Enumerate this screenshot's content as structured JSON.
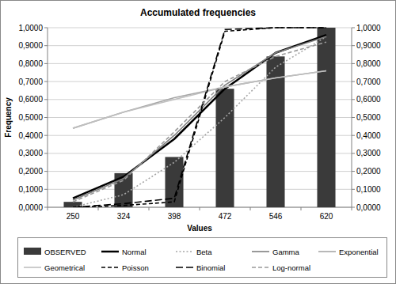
{
  "chart_data": {
    "type": "bar",
    "title": "Accumulated frequencies",
    "x_label": "Values",
    "y_label": "Frequency",
    "categories": [
      "250",
      "324",
      "398",
      "472",
      "546",
      "620"
    ],
    "ylim": [
      0,
      1
    ],
    "yticks": [
      {
        "value": 0,
        "label": "0,0000"
      },
      {
        "value": 0.1,
        "label": "0,1000"
      },
      {
        "value": 0.2,
        "label": "0,2000"
      },
      {
        "value": 0.3,
        "label": "0,3000"
      },
      {
        "value": 0.4,
        "label": "0,4000"
      },
      {
        "value": 0.5,
        "label": "0,5000"
      },
      {
        "value": 0.6,
        "label": "0,6000"
      },
      {
        "value": 0.7,
        "label": "0,7000"
      },
      {
        "value": 0.8,
        "label": "0,8000"
      },
      {
        "value": 0.9,
        "label": "0,9000"
      },
      {
        "value": 1,
        "label": "1,0000"
      }
    ],
    "y2lim": [
      0,
      1
    ],
    "y2ticks": [
      {
        "value": 0,
        "label": "0,0000"
      },
      {
        "value": 0.1,
        "label": "0,1000"
      },
      {
        "value": 0.2,
        "label": "0,2000"
      },
      {
        "value": 0.3,
        "label": "0,3000"
      },
      {
        "value": 0.4,
        "label": "0,4000"
      },
      {
        "value": 0.5,
        "label": "0,5000"
      },
      {
        "value": 0.6,
        "label": "0,6000"
      },
      {
        "value": 0.7,
        "label": "0,7000"
      },
      {
        "value": 0.8,
        "label": "0,8000"
      },
      {
        "value": 0.9,
        "label": "0,9000"
      },
      {
        "value": 1,
        "label": "1,0000"
      }
    ],
    "grid": true,
    "legend": "bottom",
    "series": [
      {
        "name": "OBSERVED",
        "type": "bar",
        "color": "#3a3a3a",
        "values": [
          0.03,
          0.19,
          0.28,
          0.66,
          0.84,
          1.0
        ]
      },
      {
        "name": "Normal",
        "type": "line",
        "color": "#000000",
        "line_style": "solid",
        "values": [
          0.05,
          0.17,
          0.38,
          0.66,
          0.86,
          0.96
        ]
      },
      {
        "name": "Beta",
        "type": "line",
        "color": "#a6a6a6",
        "line_style": "dotted",
        "values": [
          0.0,
          0.07,
          0.25,
          0.5,
          0.78,
          0.95
        ]
      },
      {
        "name": "Gamma",
        "type": "line",
        "color": "#7f7f7f",
        "line_style": "solid",
        "values": [
          0.04,
          0.16,
          0.4,
          0.68,
          0.86,
          0.95
        ]
      },
      {
        "name": "Exponential",
        "type": "line",
        "color": "#a6a6a6",
        "line_style": "solid",
        "values": [
          0.44,
          0.53,
          0.61,
          0.67,
          0.72,
          0.76
        ]
      },
      {
        "name": "Geometrical",
        "type": "line",
        "color": "#bfbfbf",
        "line_style": "solid",
        "values": [
          0.44,
          0.53,
          0.6,
          0.67,
          0.72,
          0.76
        ]
      },
      {
        "name": "Poisson",
        "type": "line",
        "color": "#000000",
        "line_style": "dashed",
        "values": [
          0.0,
          0.01,
          0.03,
          0.98,
          1.0,
          1.0
        ]
      },
      {
        "name": "Binomial",
        "type": "line",
        "color": "#000000",
        "line_style": "long-dash",
        "values": [
          0.0,
          0.02,
          0.05,
          0.99,
          1.0,
          1.0
        ]
      },
      {
        "name": "Log-normal",
        "type": "line",
        "color": "#999999",
        "line_style": "dashed",
        "values": [
          0.03,
          0.15,
          0.42,
          0.7,
          0.84,
          0.92
        ]
      }
    ]
  }
}
